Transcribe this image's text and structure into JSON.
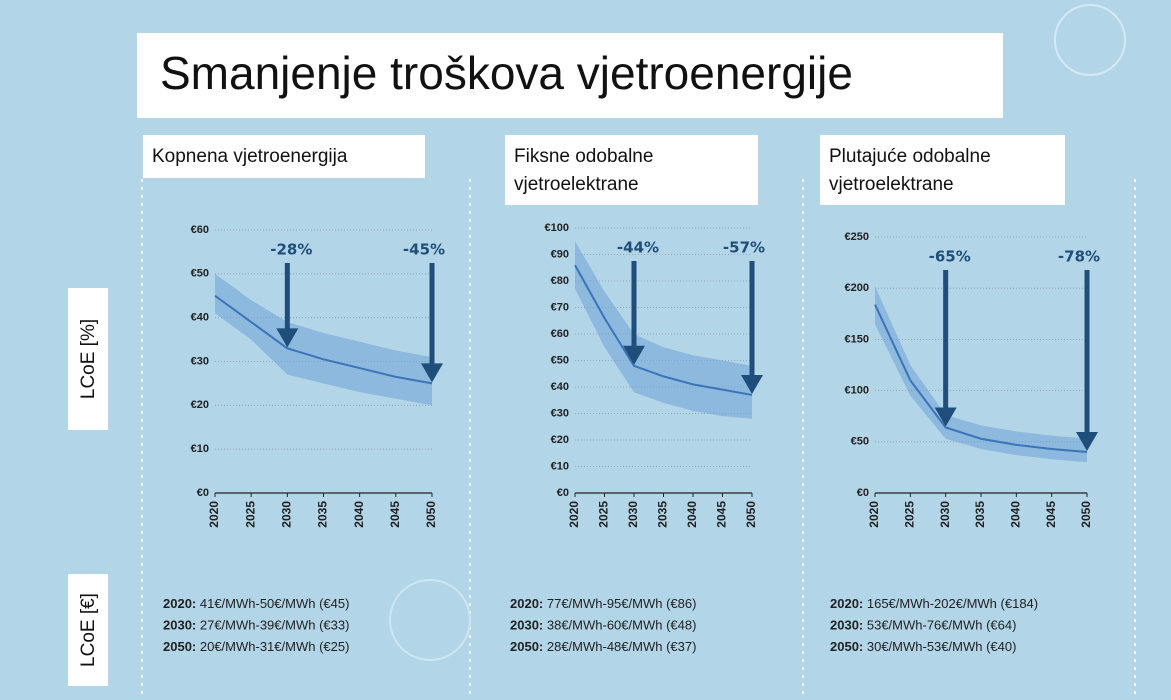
{
  "title": "Smanjenje troškova vjetroenergije",
  "side_labels": [
    "LCoE [%]",
    "LCoE [€]"
  ],
  "chart_data": [
    {
      "type": "line",
      "title": [
        "Kopnena vjetroenergija"
      ],
      "x": [
        2020,
        2025,
        2030,
        2035,
        2040,
        2045,
        2050
      ],
      "xlim": [
        2020,
        2050
      ],
      "xticks": [
        2020,
        2025,
        2030,
        2035,
        2040,
        2045,
        2050
      ],
      "ylim": [
        0,
        60
      ],
      "yticks": [
        {
          "value": 0,
          "label": "€0"
        },
        {
          "value": 10,
          "label": "€10"
        },
        {
          "value": 20,
          "label": "€20"
        },
        {
          "value": 30,
          "label": "€30"
        },
        {
          "value": 40,
          "label": "€40"
        },
        {
          "value": 50,
          "label": "€50"
        },
        {
          "value": 60,
          "label": "€60"
        }
      ],
      "grid": true,
      "series": [
        {
          "color": "#3b74b8",
          "values": [
            45,
            39,
            33,
            30.5,
            28.5,
            26.5,
            25
          ]
        }
      ],
      "band": {
        "color": "#6fa3d6",
        "low": [
          41,
          35,
          27,
          25,
          23,
          21.5,
          20
        ],
        "high": [
          50,
          44,
          39,
          36.5,
          34.5,
          32.5,
          31
        ]
      },
      "annotations": [
        {
          "x": 2030,
          "label": "-28%"
        },
        {
          "x": 2050,
          "label": "-45%"
        }
      ],
      "notes": [
        {
          "year": "2020:",
          "text": " 41€/MWh-50€/MWh (€45)"
        },
        {
          "year": "2030:",
          "text": " 27€/MWh-39€/MWh (€33)"
        },
        {
          "year": "2050:",
          "text": " 20€/MWh-31€/MWh (€25)"
        }
      ]
    },
    {
      "type": "line",
      "title": [
        "Fiksne odobalne",
        "vjetroelektrane"
      ],
      "x": [
        2020,
        2025,
        2030,
        2035,
        2040,
        2045,
        2050
      ],
      "xlim": [
        2020,
        2050
      ],
      "xticks": [
        2020,
        2025,
        2030,
        2035,
        2040,
        2045,
        2050
      ],
      "ylim": [
        0,
        100
      ],
      "yticks": [
        {
          "value": 0,
          "label": "€0"
        },
        {
          "value": 10,
          "label": "€10"
        },
        {
          "value": 20,
          "label": "€20"
        },
        {
          "value": 30,
          "label": "€30"
        },
        {
          "value": 40,
          "label": "€40"
        },
        {
          "value": 50,
          "label": "€50"
        },
        {
          "value": 60,
          "label": "€60"
        },
        {
          "value": 70,
          "label": "€70"
        },
        {
          "value": 80,
          "label": "€80"
        },
        {
          "value": 90,
          "label": "€90"
        },
        {
          "value": 100,
          "label": "€100"
        }
      ],
      "grid": true,
      "series": [
        {
          "color": "#3b74b8",
          "values": [
            86,
            66,
            48,
            44,
            41,
            39,
            37
          ]
        }
      ],
      "band": {
        "color": "#6fa3d6",
        "low": [
          77,
          55,
          38,
          34,
          31,
          29,
          28
        ],
        "high": [
          95,
          76,
          60,
          55,
          52,
          50,
          48
        ]
      },
      "annotations": [
        {
          "x": 2030,
          "label": "-44%"
        },
        {
          "x": 2050,
          "label": "-57%"
        }
      ],
      "notes": [
        {
          "year": "2020:",
          "text": " 77€/MWh-95€/MWh (€86)"
        },
        {
          "year": "2030:",
          "text": " 38€/MWh-60€/MWh (€48)"
        },
        {
          "year": "2050:",
          "text": " 28€/MWh-48€/MWh (€37)"
        }
      ]
    },
    {
      "type": "line",
      "title": [
        "Plutajuće odobalne",
        "vjetroelektrane"
      ],
      "x": [
        2020,
        2025,
        2030,
        2035,
        2040,
        2045,
        2050
      ],
      "xlim": [
        2020,
        2050
      ],
      "xticks": [
        2020,
        2025,
        2030,
        2035,
        2040,
        2045,
        2050
      ],
      "ylim": [
        0,
        250
      ],
      "yticks": [
        {
          "value": 0,
          "label": "€0"
        },
        {
          "value": 50,
          "label": "€50"
        },
        {
          "value": 100,
          "label": "€100"
        },
        {
          "value": 150,
          "label": "€150"
        },
        {
          "value": 200,
          "label": "€200"
        },
        {
          "value": 250,
          "label": "€250"
        }
      ],
      "grid": true,
      "series": [
        {
          "color": "#3b74b8",
          "values": [
            184,
            110,
            64,
            53,
            47,
            43,
            40
          ]
        }
      ],
      "band": {
        "color": "#6fa3d6",
        "low": [
          165,
          95,
          53,
          43,
          37,
          33,
          30
        ],
        "high": [
          202,
          125,
          76,
          66,
          60,
          56,
          53
        ]
      },
      "annotations": [
        {
          "x": 2030,
          "label": "-65%"
        },
        {
          "x": 2050,
          "label": "-78%"
        }
      ],
      "notes": [
        {
          "year": "2020:",
          "text": " 165€/MWh-202€/MWh (€184)"
        },
        {
          "year": "2030:",
          "text": " 53€/MWh-76€/MWh (€64)"
        },
        {
          "year": "2050:",
          "text": " 30€/MWh-53€/MWh (€40)"
        }
      ]
    }
  ]
}
